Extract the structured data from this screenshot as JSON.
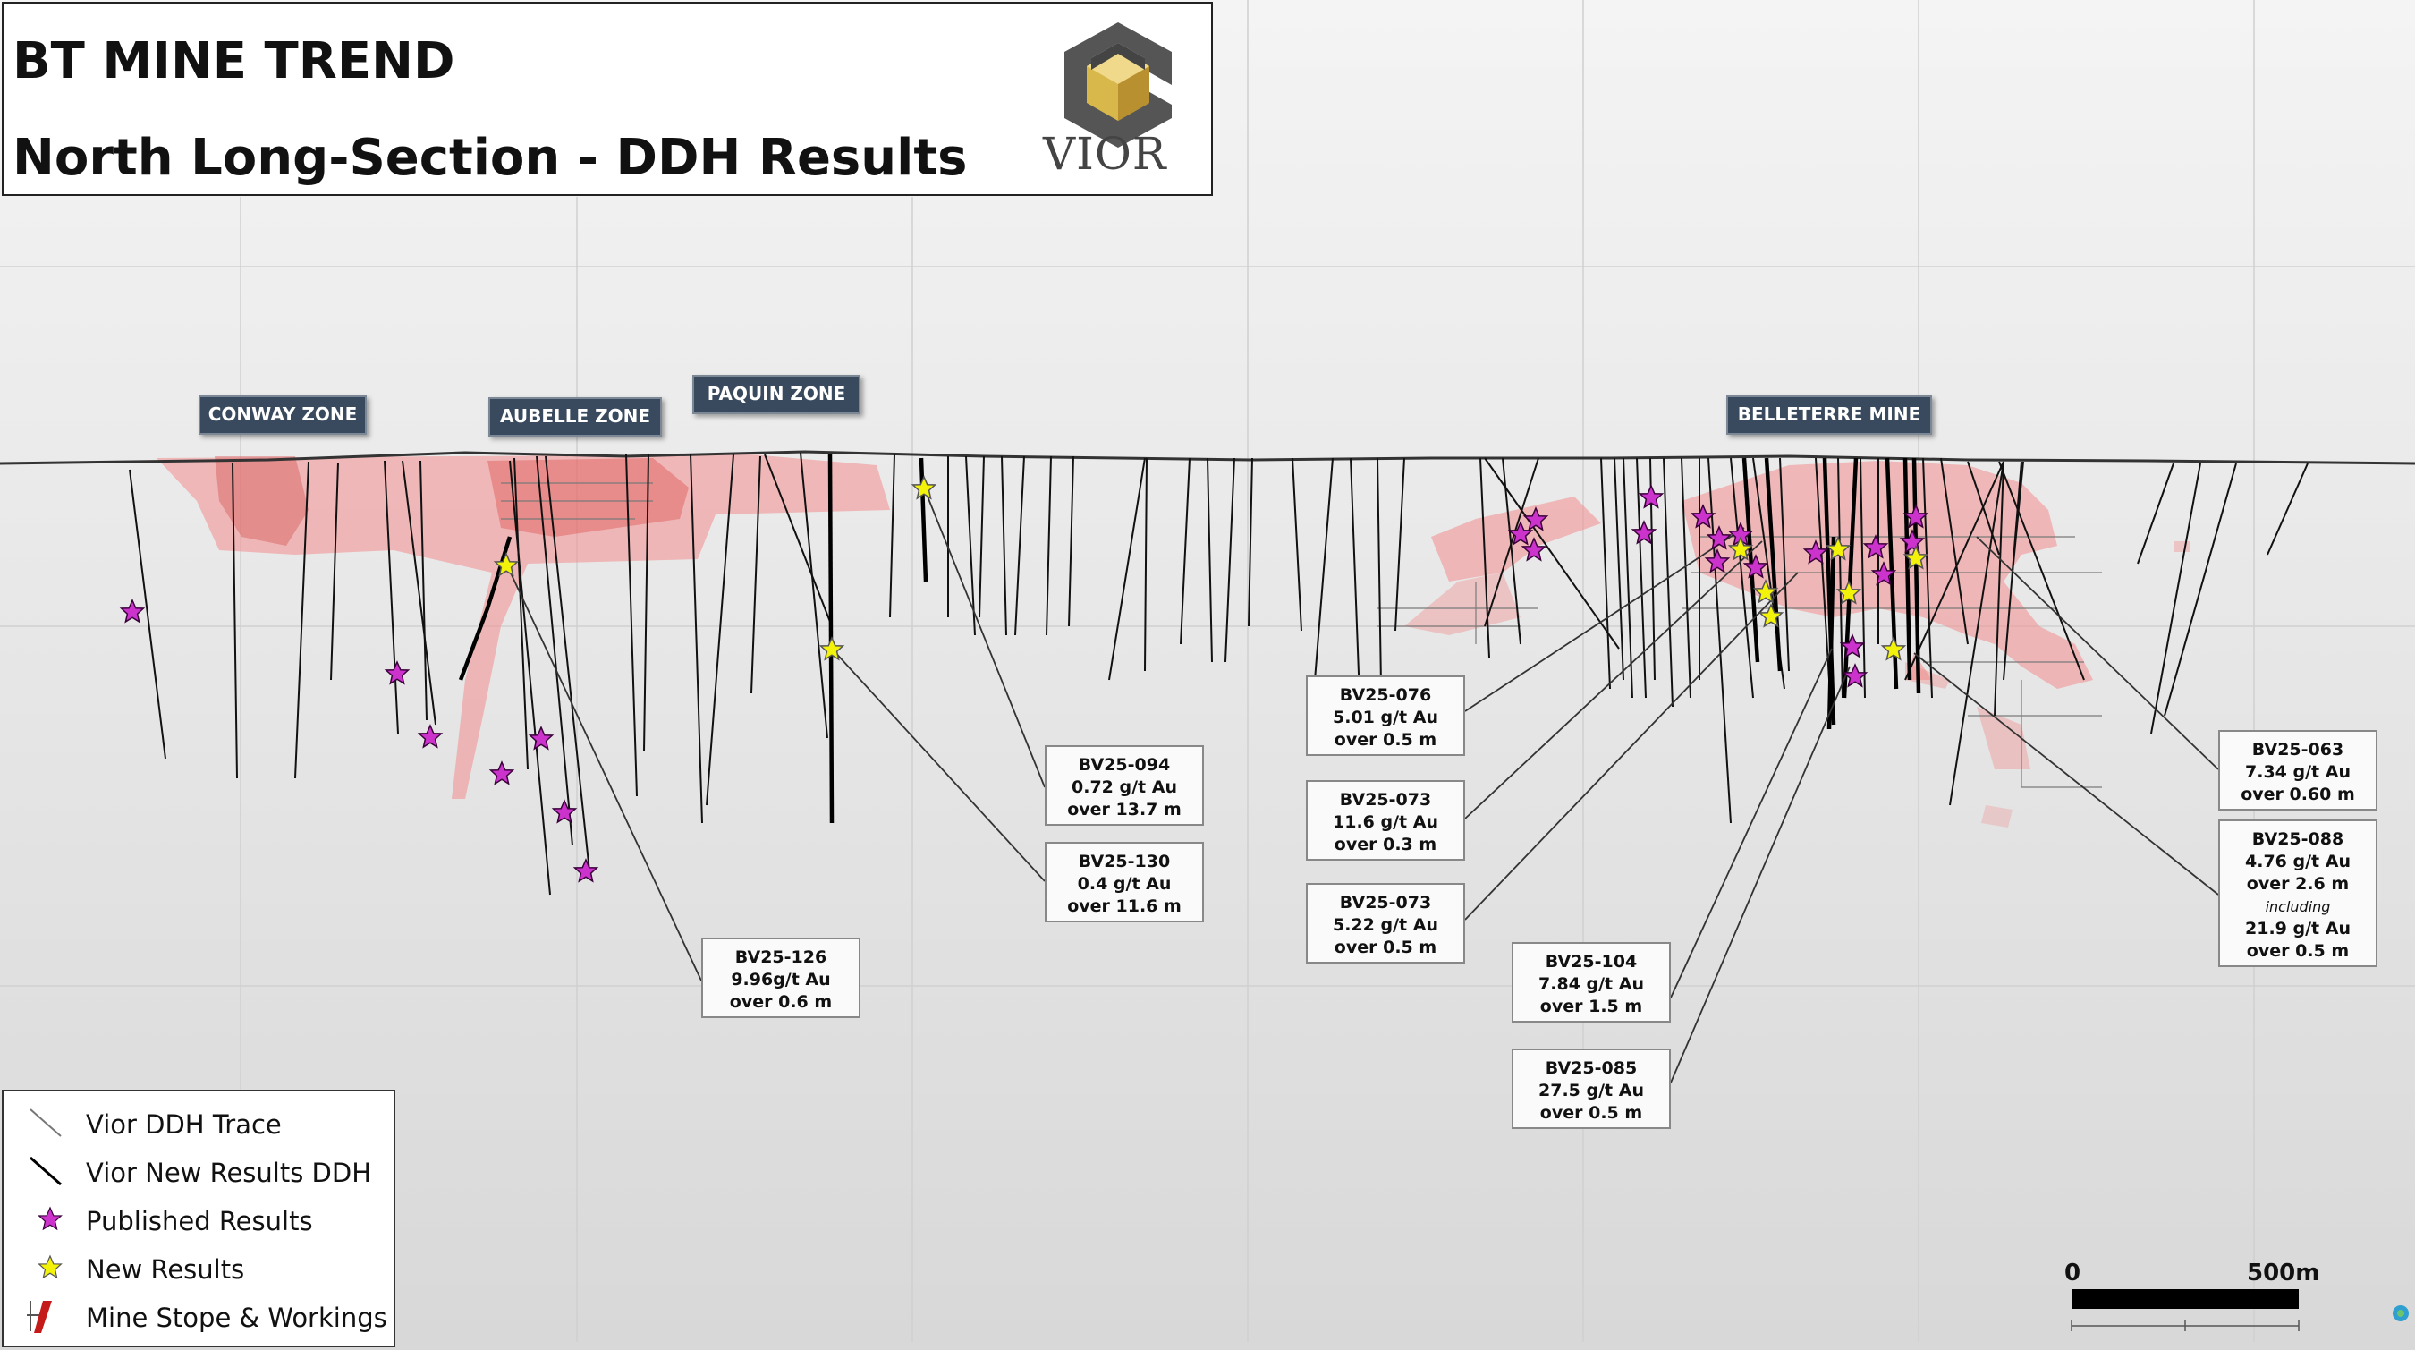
{
  "title": {
    "line1": "BT MINE TREND",
    "line2": "North Long-Section - DDH Results"
  },
  "logo": {
    "text": "VIOR"
  },
  "zones": [
    {
      "label": "CONWAY ZONE"
    },
    {
      "label": "AUBELLE ZONE"
    },
    {
      "label": "PAQUIN ZONE"
    },
    {
      "label": "BELLETERRE MINE"
    }
  ],
  "callouts": [
    {
      "hole": "BV25-094",
      "grade": "0.72 g/t Au",
      "length": "over 13.7 m"
    },
    {
      "hole": "BV25-130",
      "grade": "0.4 g/t Au",
      "length": "over 11.6 m"
    },
    {
      "hole": "BV25-126",
      "grade": "9.96g/t Au",
      "length": "over 0.6 m"
    },
    {
      "hole": "BV25-076",
      "grade": "5.01 g/t Au",
      "length": "over 0.5 m"
    },
    {
      "hole": "BV25-073",
      "grade": "11.6 g/t Au",
      "length": "over 0.3 m"
    },
    {
      "hole": "BV25-073",
      "grade": "5.22 g/t Au",
      "length": "over 0.5 m"
    },
    {
      "hole": "BV25-104",
      "grade": "7.84 g/t Au",
      "length": "over 1.5 m"
    },
    {
      "hole": "BV25-085",
      "grade": "27.5 g/t Au",
      "length": "over 0.5 m"
    },
    {
      "hole": "BV25-063",
      "grade": "7.34 g/t Au",
      "length": "over 0.60 m"
    },
    {
      "hole": "BV25-088",
      "grade": "4.76 g/t Au",
      "length": "over 2.6 m",
      "including": "including",
      "grade2": "21.9 g/t Au",
      "length2": "over 0.5 m"
    }
  ],
  "legend": [
    {
      "label": "Vior DDH Trace",
      "icon": "thin-line-icon"
    },
    {
      "label": "Vior New Results DDH",
      "icon": "bold-line-icon"
    },
    {
      "label": "Published Results",
      "icon": "magenta-star-icon"
    },
    {
      "label": "New Results",
      "icon": "yellow-star-icon"
    },
    {
      "label": "Mine Stope & Workings",
      "icon": "stope-icon"
    }
  ],
  "scale": {
    "start": "0",
    "end": "500m"
  },
  "colors": {
    "magenta_star": "#cc33cc",
    "yellow_star": "#f2f20a",
    "stope": "#f08080",
    "zone_box": "#3a4a5e"
  }
}
